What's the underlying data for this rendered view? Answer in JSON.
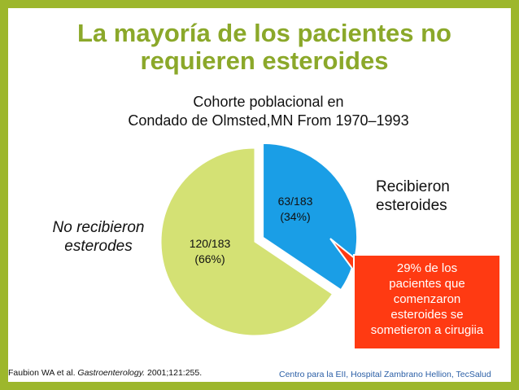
{
  "slide": {
    "title_line1": "La mayoría de los pacientes no",
    "title_line2": "requieren esteroides",
    "subtitle_line1": "Cohorte poblacional en",
    "subtitle_line2": "Condado de Olmsted,MN From 1970–1993",
    "callout_lines": [
      "29% de los",
      "pacientes que",
      "comenzaron",
      "esteroides se",
      "sometieron a cirugiia"
    ],
    "citation_prefix": "Faubion WA et al. ",
    "citation_journal": "Gastroenterology.",
    "citation_suffix": " 2001;121:255.",
    "footer": "Centro para la EII, Hospital Zambrano Hellion, TecSalud"
  },
  "chart_data": {
    "type": "pie",
    "title": "Cohorte poblacional en Condado de Olmsted,MN From 1970–1993",
    "slices": [
      {
        "name": "Recibieron esteroides",
        "legend_lines": [
          "Recibieron",
          "esteroides"
        ],
        "value": 63,
        "fraction_text": "63/183",
        "percent_text": "(34%)",
        "color": "#1a9ee6",
        "exploded": true
      },
      {
        "name": "No recibieron esterodes",
        "legend_lines": [
          "No recibieron",
          "esterodes"
        ],
        "value": 120,
        "fraction_text": "120/183",
        "percent_text": "(66%)",
        "color": "#d4e174",
        "exploded": false
      }
    ],
    "total": 183,
    "legend_placement": "beside slices"
  },
  "colors": {
    "background_frame": "#9db72c",
    "title": "#8ba82a",
    "callout_fill": "#ff3a12",
    "footer_text": "#2b5fa6"
  }
}
